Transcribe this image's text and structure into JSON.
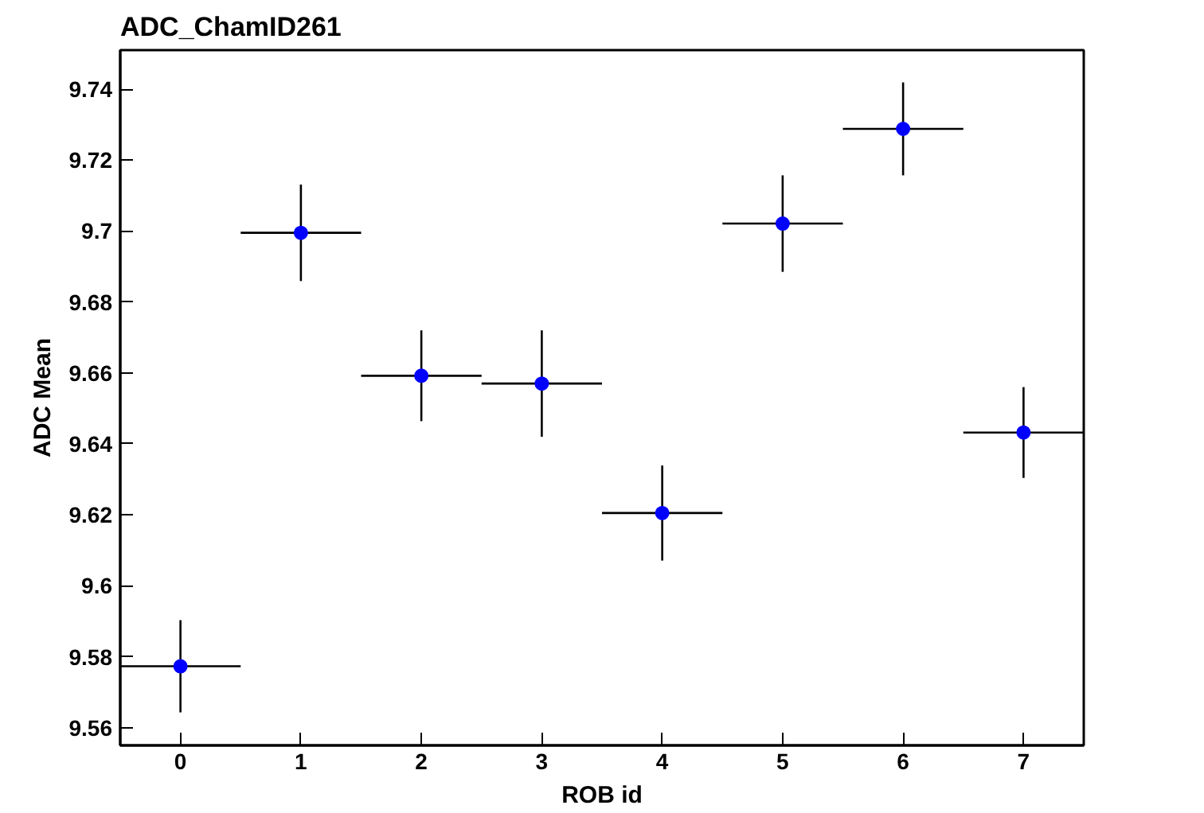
{
  "chart_data": {
    "type": "scatter",
    "title": "ADC_ChamID261",
    "xlabel": "ROB id",
    "ylabel": "ADC Mean",
    "x": [
      0,
      1,
      2,
      3,
      4,
      5,
      6,
      7
    ],
    "values": [
      9.5773,
      9.6995,
      9.6592,
      9.657,
      9.6205,
      9.7021,
      9.7288,
      9.6432
    ],
    "errors": [
      0.013,
      0.0136,
      0.0128,
      0.015,
      0.0134,
      0.0136,
      0.0131,
      0.0128
    ],
    "xerrors": [
      0.5,
      0.5,
      0.5,
      0.5,
      0.5,
      0.5,
      0.5,
      0.5
    ],
    "color": "#0000ff",
    "marker": "circle",
    "grid": false,
    "xlim": [
      -0.5,
      7.5
    ],
    "ylim": [
      9.555,
      9.751
    ],
    "xticks": [
      0,
      1,
      2,
      3,
      4,
      5,
      6,
      7
    ],
    "yticks": [
      9.56,
      9.58,
      9.6,
      9.62,
      9.64,
      9.66,
      9.68,
      9.7,
      9.72,
      9.74
    ]
  }
}
